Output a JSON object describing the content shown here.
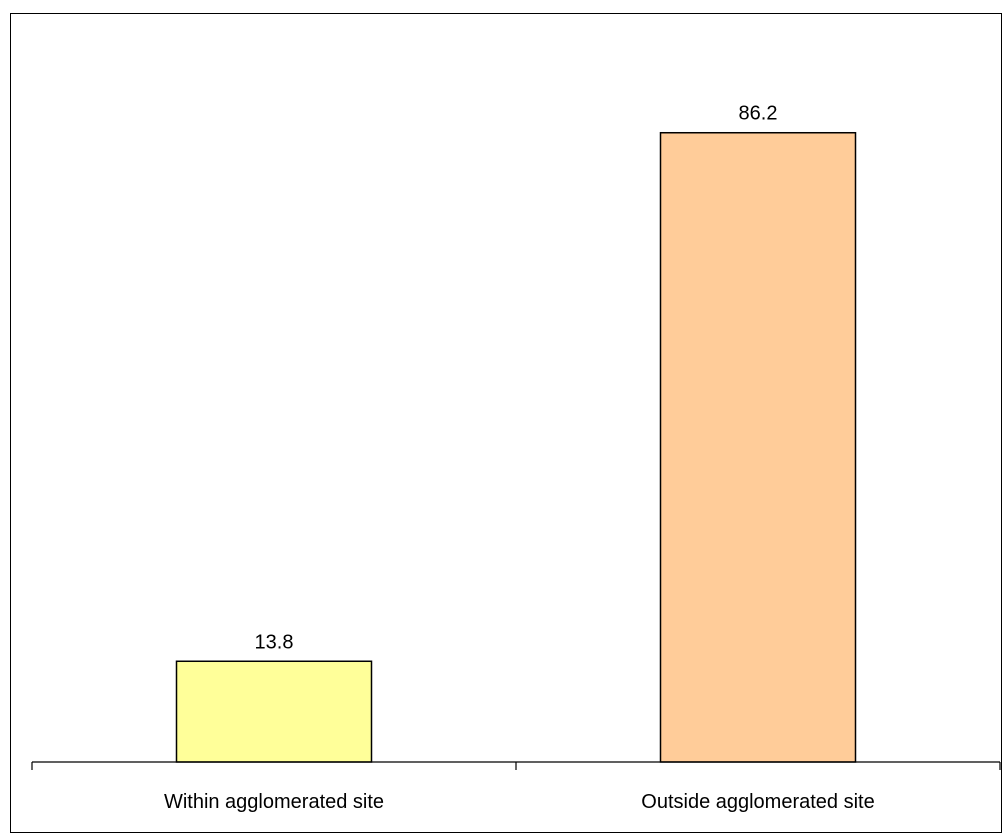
{
  "chart_data": {
    "type": "bar",
    "title": "",
    "xlabel": "",
    "ylabel": "",
    "ylim": [
      0,
      100
    ],
    "grid": false,
    "categories": [
      "Within agglomerated site",
      "Outside agglomerated site"
    ],
    "values": [
      13.8,
      86.2
    ],
    "data_labels": [
      "13.8",
      "86.2"
    ],
    "colors": [
      "#FFFF99",
      "#FFCC99"
    ],
    "edge_color": "#000000"
  }
}
